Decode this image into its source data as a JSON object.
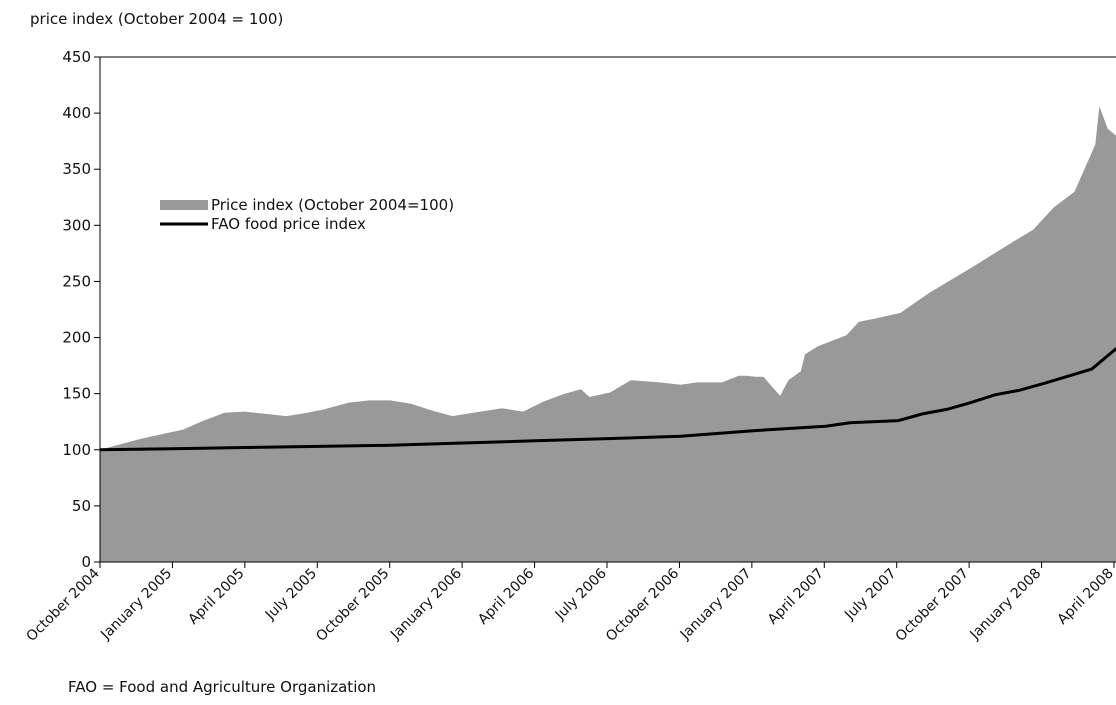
{
  "chart_data": {
    "type": "area",
    "ylabel": "price index (October 2004 = 100)",
    "footnote": "FAO = Food and Agriculture Organization",
    "ylim": [
      0,
      450
    ],
    "yticks": [
      0,
      50,
      100,
      150,
      200,
      250,
      300,
      350,
      400,
      450
    ],
    "x_tick_labels": [
      "October 2004",
      "January 2005",
      "April 2005",
      "July 2005",
      "October 2005",
      "January 2006",
      "April 2006",
      "July 2006",
      "October 2006",
      "January 2007",
      "April 2007",
      "July 2007",
      "October 2007",
      "January 2008",
      "April 2008"
    ],
    "x_range_months": [
      0,
      14
    ],
    "grid": false,
    "legend_position": "top-left",
    "series": [
      {
        "name": "Price index (October 2004=100)",
        "kind": "area",
        "color": "#999999",
        "points": [
          {
            "month": 0.0,
            "value": 100
          },
          {
            "month": 0.3,
            "value": 103
          },
          {
            "month": 1.0,
            "value": 110
          },
          {
            "month": 2.0,
            "value": 118
          },
          {
            "month": 2.5,
            "value": 126
          },
          {
            "month": 3.0,
            "value": 133
          },
          {
            "month": 3.5,
            "value": 134
          },
          {
            "month": 4.0,
            "value": 132
          },
          {
            "month": 4.5,
            "value": 130
          },
          {
            "month": 5.0,
            "value": 133
          },
          {
            "month": 5.4,
            "value": 136
          },
          {
            "month": 6.0,
            "value": 142
          },
          {
            "month": 6.5,
            "value": 144
          },
          {
            "month": 7.0,
            "value": 144
          },
          {
            "month": 7.5,
            "value": 141
          },
          {
            "month": 8.0,
            "value": 135
          },
          {
            "month": 8.5,
            "value": 130
          },
          {
            "month": 9.0,
            "value": 133
          },
          {
            "month": 9.7,
            "value": 137
          },
          {
            "month": 10.2,
            "value": 134
          },
          {
            "month": 10.7,
            "value": 143
          },
          {
            "month": 11.2,
            "value": 150
          },
          {
            "month": 11.6,
            "value": 154
          },
          {
            "month": 11.8,
            "value": 147
          },
          {
            "month": 12.3,
            "value": 151
          },
          {
            "month": 12.8,
            "value": 162
          },
          {
            "month": 13.5,
            "value": 160
          },
          {
            "month": 14.0,
            "value": 158
          },
          {
            "month": 14.4,
            "value": 160
          },
          {
            "month": 14.7,
            "value": 160
          },
          {
            "month": 15.0,
            "value": 160
          },
          {
            "month": 15.4,
            "value": 166
          },
          {
            "month": 15.6,
            "value": 166
          },
          {
            "month": 15.8,
            "value": 165
          },
          {
            "month": 16.0,
            "value": 165
          },
          {
            "month": 16.4,
            "value": 148
          },
          {
            "month": 16.6,
            "value": 162
          },
          {
            "month": 16.9,
            "value": 170
          },
          {
            "month": 17.0,
            "value": 185
          },
          {
            "month": 17.3,
            "value": 192
          },
          {
            "month": 17.5,
            "value": 195
          },
          {
            "month": 18.0,
            "value": 202
          },
          {
            "month": 18.3,
            "value": 214
          },
          {
            "month": 18.7,
            "value": 217
          },
          {
            "month": 19.3,
            "value": 222
          },
          {
            "month": 20.0,
            "value": 240
          },
          {
            "month": 21.0,
            "value": 262
          },
          {
            "month": 22.0,
            "value": 285
          },
          {
            "month": 22.5,
            "value": 296
          },
          {
            "month": 22.8,
            "value": 308
          },
          {
            "month": 23.0,
            "value": 316
          },
          {
            "month": 23.5,
            "value": 330
          },
          {
            "month": 24.0,
            "value": 372
          },
          {
            "month": 24.1,
            "value": 406
          },
          {
            "month": 24.3,
            "value": 386
          },
          {
            "month": 24.5,
            "value": 380
          }
        ]
      },
      {
        "name": "FAO food price index",
        "kind": "line",
        "color": "#000000",
        "points": [
          {
            "month": 0,
            "value": 100
          },
          {
            "month": 3,
            "value": 101
          },
          {
            "month": 6,
            "value": 102
          },
          {
            "month": 9,
            "value": 103
          },
          {
            "month": 12,
            "value": 104
          },
          {
            "month": 15,
            "value": 106
          },
          {
            "month": 18,
            "value": 108
          },
          {
            "month": 21,
            "value": 110
          },
          {
            "month": 24,
            "value": 112
          },
          {
            "month": 27,
            "value": 117
          },
          {
            "month": 30,
            "value": 121
          },
          {
            "month": 31,
            "value": 124
          },
          {
            "month": 33,
            "value": 126
          },
          {
            "month": 34,
            "value": 132
          },
          {
            "month": 35,
            "value": 136
          },
          {
            "month": 36,
            "value": 142
          },
          {
            "month": 37,
            "value": 149
          },
          {
            "month": 38,
            "value": 153
          },
          {
            "month": 39,
            "value": 159
          },
          {
            "month": 41,
            "value": 172
          },
          {
            "month": 42,
            "value": 190
          },
          {
            "month": 43,
            "value": 193
          }
        ]
      }
    ]
  }
}
